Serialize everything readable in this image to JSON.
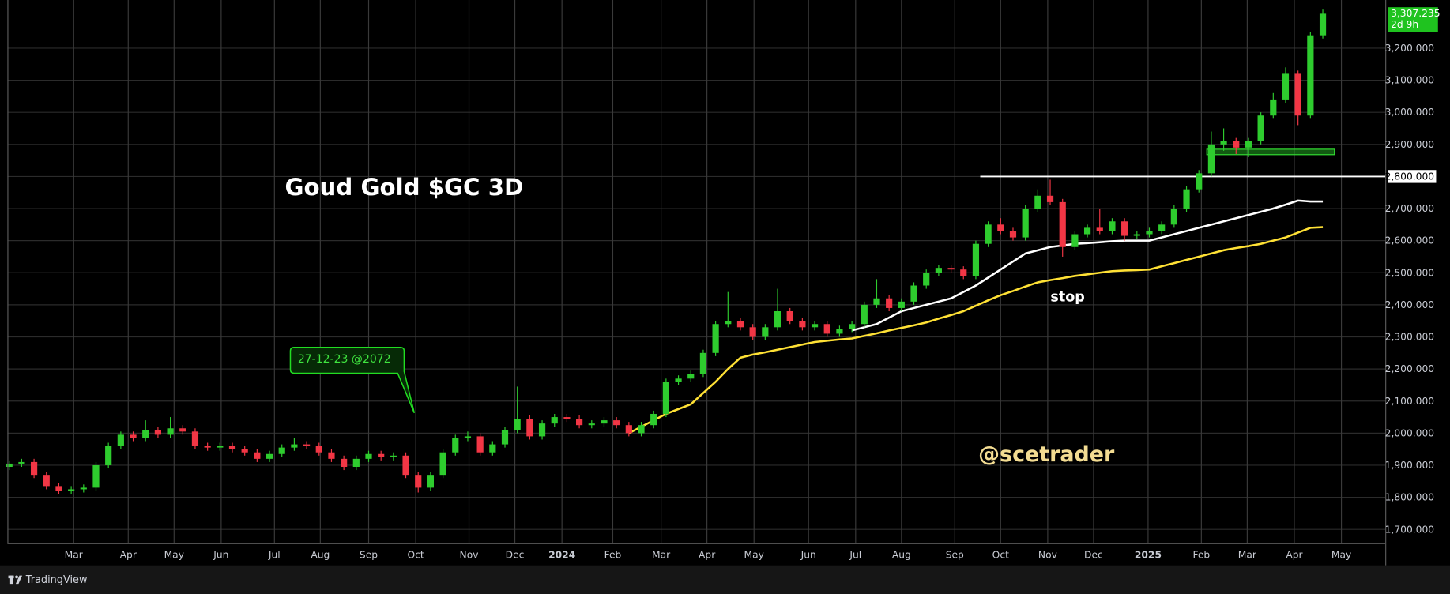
{
  "chart_data": {
    "type": "candlestick",
    "title": "Goud Gold $GC 3D",
    "note": "stop",
    "watermark": "@scetrader",
    "callout": "27-12-23 @2072",
    "last_price_label": "3,307.235",
    "countdown": "2d 9h",
    "up_color": "#2ecc2e",
    "down_color": "#f23645",
    "grid": true,
    "xlim": [
      -0.15,
      111.04
    ],
    "ylim": [
      1657,
      3350
    ],
    "hline": 2800,
    "zone": [
      2868,
      2885
    ],
    "xticks": [
      {
        "value": 5.2,
        "label": "Mar"
      },
      {
        "value": 9.6,
        "label": "Apr"
      },
      {
        "value": 13.3,
        "label": "May"
      },
      {
        "value": 17.1,
        "label": "Jun"
      },
      {
        "value": 21.4,
        "label": "Jul"
      },
      {
        "value": 25.1,
        "label": "Aug"
      },
      {
        "value": 29.0,
        "label": "Sep"
      },
      {
        "value": 32.8,
        "label": "Oct"
      },
      {
        "value": 37.1,
        "label": "Nov"
      },
      {
        "value": 40.8,
        "label": "Dec"
      },
      {
        "value": 44.6,
        "label": "2024"
      },
      {
        "value": 48.7,
        "label": "Feb"
      },
      {
        "value": 52.6,
        "label": "Mar"
      },
      {
        "value": 56.3,
        "label": "Apr"
      },
      {
        "value": 60.1,
        "label": "May"
      },
      {
        "value": 64.5,
        "label": "Jun"
      },
      {
        "value": 68.3,
        "label": "Jul"
      },
      {
        "value": 72.0,
        "label": "Aug"
      },
      {
        "value": 76.3,
        "label": "Sep"
      },
      {
        "value": 80.0,
        "label": "Oct"
      },
      {
        "value": 83.8,
        "label": "Nov"
      },
      {
        "value": 87.5,
        "label": "Dec"
      },
      {
        "value": 91.9,
        "label": "2025"
      },
      {
        "value": 96.2,
        "label": "Feb"
      },
      {
        "value": 99.9,
        "label": "Mar"
      },
      {
        "value": 103.7,
        "label": "Apr"
      },
      {
        "value": 107.5,
        "label": "May"
      }
    ],
    "yticks": [
      {
        "value": 1700,
        "label": "1,700.000"
      },
      {
        "value": 1800,
        "label": "1,800.000"
      },
      {
        "value": 1900,
        "label": "1,900.000"
      },
      {
        "value": 2000,
        "label": "2,000.000"
      },
      {
        "value": 2100,
        "label": "2,100.000"
      },
      {
        "value": 2200,
        "label": "2,200.000"
      },
      {
        "value": 2300,
        "label": "2,300.000"
      },
      {
        "value": 2400,
        "label": "2,400.000"
      },
      {
        "value": 2500,
        "label": "2,500.000"
      },
      {
        "value": 2600,
        "label": "2,600.000"
      },
      {
        "value": 2700,
        "label": "2,700.000"
      },
      {
        "value": 2800,
        "label": "2,800.000"
      },
      {
        "value": 2900,
        "label": "2,900.000"
      },
      {
        "value": 3000,
        "label": "3,000.000"
      },
      {
        "value": 3100,
        "label": "3,100.000"
      },
      {
        "value": 3200,
        "label": "3,200.000"
      }
    ],
    "open": [
      1895,
      1905,
      1910,
      1870,
      1835,
      1820,
      1825,
      1830,
      1900,
      1960,
      1995,
      1985,
      2010,
      1995,
      2015,
      2005,
      1960,
      1955,
      1960,
      1950,
      1940,
      1920,
      1935,
      1955,
      1965,
      1960,
      1940,
      1920,
      1895,
      1920,
      1935,
      1925,
      1930,
      1870,
      1830,
      1870,
      1940,
      1985,
      1990,
      1940,
      1965,
      2010,
      2045,
      1990,
      2030,
      2050,
      2045,
      2025,
      2030,
      2040,
      2025,
      2000,
      2025,
      2060,
      2160,
      2170,
      2185,
      2250,
      2340,
      2350,
      2330,
      2300,
      2330,
      2380,
      2350,
      2330,
      2340,
      2310,
      2325,
      2340,
      2400,
      2420,
      2390,
      2410,
      2460,
      2500,
      2515,
      2510,
      2490,
      2590,
      2650,
      2630,
      2610,
      2700,
      2740,
      2720,
      2580,
      2620,
      2640,
      2630,
      2660,
      2615,
      2620,
      2630,
      2650,
      2700,
      2760,
      2810,
      2900,
      2910,
      2890,
      2910,
      2990,
      3040,
      3120,
      2990,
      3240
    ],
    "high": [
      1915,
      1920,
      1920,
      1880,
      1845,
      1835,
      1840,
      1910,
      1970,
      2005,
      2005,
      2040,
      2020,
      2050,
      2025,
      2015,
      1970,
      1970,
      1970,
      1960,
      1950,
      1945,
      1965,
      1985,
      1975,
      1970,
      1950,
      1930,
      1930,
      1945,
      1945,
      1940,
      1940,
      1880,
      1880,
      1950,
      1995,
      2005,
      2000,
      1975,
      2020,
      2145,
      2055,
      2040,
      2060,
      2060,
      2055,
      2040,
      2050,
      2050,
      2035,
      2035,
      2070,
      2170,
      2180,
      2195,
      2260,
      2350,
      2440,
      2360,
      2340,
      2340,
      2450,
      2390,
      2360,
      2350,
      2350,
      2335,
      2350,
      2410,
      2480,
      2430,
      2420,
      2470,
      2510,
      2525,
      2525,
      2520,
      2600,
      2660,
      2670,
      2640,
      2710,
      2760,
      2790,
      2730,
      2630,
      2650,
      2700,
      2670,
      2670,
      2630,
      2640,
      2660,
      2710,
      2770,
      2820,
      2940,
      2950,
      2920,
      2920,
      3000,
      3060,
      3140,
      3130,
      3250,
      3320
    ],
    "low": [
      1885,
      1895,
      1860,
      1825,
      1810,
      1810,
      1815,
      1820,
      1890,
      1950,
      1975,
      1975,
      1985,
      1985,
      1995,
      1950,
      1945,
      1945,
      1940,
      1930,
      1910,
      1910,
      1925,
      1945,
      1950,
      1930,
      1910,
      1885,
      1885,
      1910,
      1915,
      1915,
      1860,
      1815,
      1820,
      1860,
      1930,
      1975,
      1930,
      1930,
      1955,
      2000,
      1980,
      1980,
      2020,
      2035,
      2015,
      2015,
      2020,
      2015,
      1990,
      1990,
      2015,
      2050,
      2150,
      2160,
      2175,
      2240,
      2330,
      2320,
      2290,
      2290,
      2320,
      2340,
      2320,
      2320,
      2300,
      2300,
      2315,
      2330,
      2390,
      2380,
      2380,
      2400,
      2450,
      2490,
      2500,
      2480,
      2480,
      2580,
      2620,
      2600,
      2600,
      2690,
      2710,
      2550,
      2570,
      2610,
      2620,
      2620,
      2600,
      2605,
      2610,
      2620,
      2640,
      2690,
      2750,
      2800,
      2880,
      2870,
      2860,
      2900,
      2980,
      3030,
      2960,
      2980,
      3230
    ],
    "close": [
      1905,
      1910,
      1870,
      1835,
      1820,
      1825,
      1830,
      1900,
      1960,
      1995,
      1985,
      2010,
      1995,
      2015,
      2005,
      1960,
      1955,
      1960,
      1950,
      1940,
      1920,
      1935,
      1955,
      1965,
      1960,
      1940,
      1920,
      1895,
      1920,
      1935,
      1925,
      1930,
      1870,
      1830,
      1870,
      1940,
      1985,
      1990,
      1940,
      1965,
      2010,
      2045,
      1990,
      2030,
      2050,
      2045,
      2025,
      2030,
      2040,
      2025,
      2000,
      2025,
      2060,
      2160,
      2170,
      2185,
      2250,
      2340,
      2350,
      2330,
      2300,
      2330,
      2380,
      2350,
      2330,
      2340,
      2310,
      2325,
      2340,
      2400,
      2420,
      2390,
      2410,
      2460,
      2500,
      2515,
      2510,
      2490,
      2590,
      2650,
      2630,
      2610,
      2700,
      2740,
      2720,
      2580,
      2620,
      2640,
      2630,
      2660,
      2615,
      2620,
      2630,
      2650,
      2700,
      2760,
      2810,
      2900,
      2910,
      2890,
      2910,
      2990,
      3040,
      3120,
      2990,
      3240,
      3307.235
    ],
    "series": [
      {
        "color": "#ffe135",
        "values": [
          null,
          null,
          null,
          null,
          null,
          null,
          null,
          null,
          null,
          null,
          null,
          null,
          null,
          null,
          null,
          null,
          null,
          null,
          null,
          null,
          null,
          null,
          null,
          null,
          null,
          null,
          null,
          null,
          null,
          null,
          null,
          null,
          null,
          null,
          null,
          null,
          null,
          null,
          null,
          null,
          null,
          null,
          null,
          null,
          null,
          null,
          null,
          null,
          null,
          null,
          2000,
          2020,
          2040,
          2060,
          2075,
          2090,
          2125,
          2160,
          2200,
          2235,
          2245,
          2252,
          2260,
          2268,
          2276,
          2284,
          2288,
          2292,
          2295,
          2303,
          2311,
          2320,
          2328,
          2336,
          2345,
          2357,
          2368,
          2380,
          2397,
          2414,
          2430,
          2443,
          2457,
          2470,
          2477,
          2483,
          2490,
          2495,
          2500,
          2505,
          2507,
          2508,
          2510,
          2520,
          2530,
          2540,
          2550,
          2560,
          2570,
          2577,
          2583,
          2590,
          2600,
          2610,
          2625,
          2640,
          2642
        ]
      },
      {
        "color": "#ffffff",
        "values": [
          null,
          null,
          null,
          null,
          null,
          null,
          null,
          null,
          null,
          null,
          null,
          null,
          null,
          null,
          null,
          null,
          null,
          null,
          null,
          null,
          null,
          null,
          null,
          null,
          null,
          null,
          null,
          null,
          null,
          null,
          null,
          null,
          null,
          null,
          null,
          null,
          null,
          null,
          null,
          null,
          null,
          null,
          null,
          null,
          null,
          null,
          null,
          null,
          null,
          null,
          null,
          null,
          null,
          null,
          null,
          null,
          null,
          null,
          null,
          null,
          null,
          null,
          null,
          null,
          null,
          null,
          null,
          null,
          2320,
          2330,
          2340,
          2360,
          2380,
          2390,
          2400,
          2410,
          2420,
          2440,
          2460,
          2485,
          2510,
          2535,
          2560,
          2570,
          2580,
          2585,
          2590,
          2592,
          2595,
          2598,
          2600,
          2600,
          2600,
          2610,
          2620,
          2630,
          2640,
          2650,
          2660,
          2670,
          2680,
          2690,
          2700,
          2712,
          2725,
          2722,
          2722
        ]
      }
    ]
  },
  "footer": {
    "brand": "TradingView"
  }
}
